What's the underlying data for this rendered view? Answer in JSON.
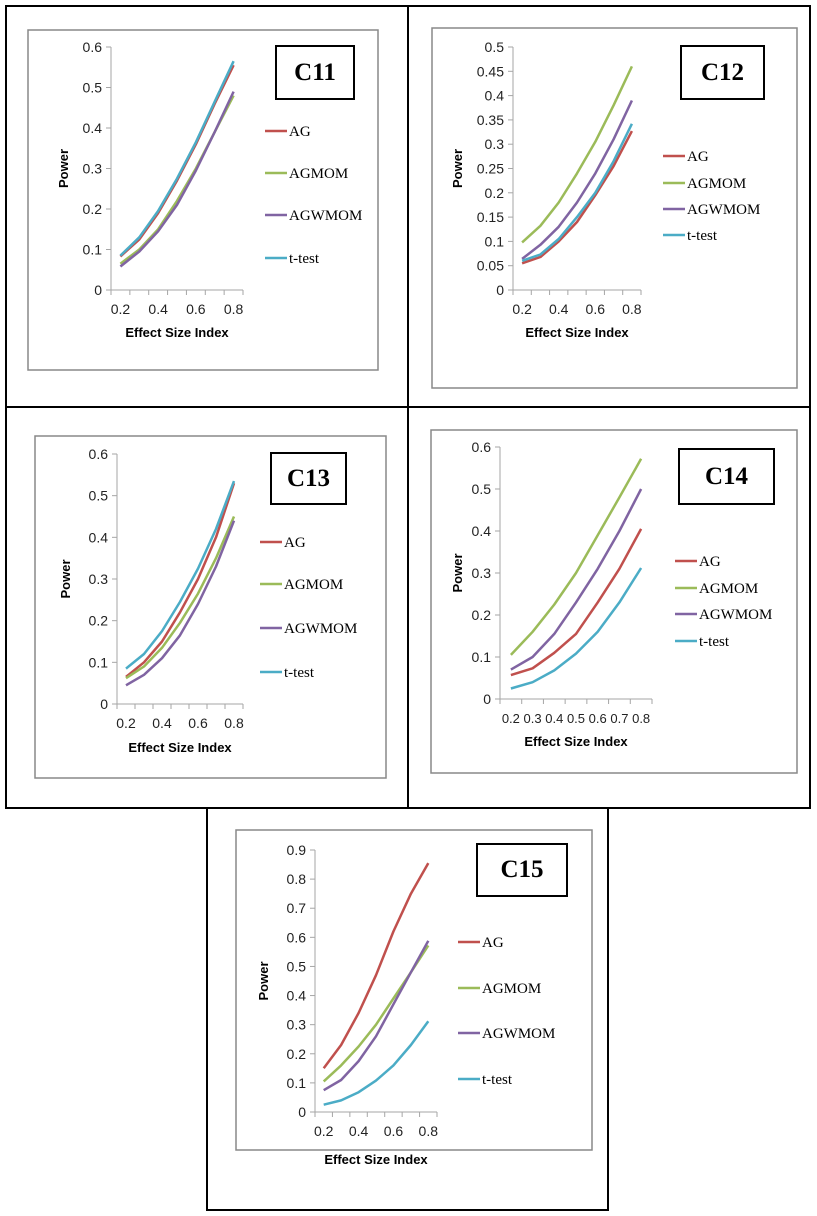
{
  "legend_labels": [
    "AG",
    "AGMOM",
    "AGWMOM",
    "t-test"
  ],
  "series_colors": [
    "#c0504d",
    "#9bbb59",
    "#8064a2",
    "#4bacc6"
  ],
  "chart_data": [
    {
      "type": "line",
      "title": "C11",
      "xlabel": "Effect Size Index",
      "ylabel": "Power",
      "categories": [
        "0.2",
        "0.3",
        "0.4",
        "0.5",
        "0.6",
        "0.7",
        "0.8"
      ],
      "x_tick_labels": [
        "0.2",
        "",
        "0.4",
        "",
        "0.6",
        "",
        "0.8"
      ],
      "ylim": [
        0,
        0.6
      ],
      "y_ticks": [
        0,
        0.1,
        0.2,
        0.3,
        0.4,
        0.5,
        0.6
      ],
      "y_tick_labels": [
        "0",
        "0.1",
        "0.2",
        "0.3",
        "0.4",
        "0.5",
        "0.6"
      ],
      "legend": "right",
      "series": [
        {
          "name": "AG",
          "values": [
            0.083,
            0.125,
            0.19,
            0.27,
            0.36,
            0.46,
            0.555
          ]
        },
        {
          "name": "AGMOM",
          "values": [
            0.065,
            0.1,
            0.15,
            0.22,
            0.3,
            0.39,
            0.48
          ]
        },
        {
          "name": "AGWMOM",
          "values": [
            0.058,
            0.095,
            0.145,
            0.21,
            0.295,
            0.39,
            0.49
          ]
        },
        {
          "name": "t-test",
          "values": [
            0.085,
            0.13,
            0.195,
            0.275,
            0.365,
            0.465,
            0.565
          ]
        }
      ]
    },
    {
      "type": "line",
      "title": "C12",
      "xlabel": "Effect Size Index",
      "ylabel": "Power",
      "categories": [
        "0.2",
        "0.3",
        "0.4",
        "0.5",
        "0.6",
        "0.7",
        "0.8"
      ],
      "x_tick_labels": [
        "0.2",
        "",
        "0.4",
        "",
        "0.6",
        "",
        "0.8"
      ],
      "ylim": [
        0,
        0.5
      ],
      "y_ticks": [
        0,
        0.05,
        0.1,
        0.15,
        0.2,
        0.25,
        0.3,
        0.35,
        0.4,
        0.45,
        0.5
      ],
      "y_tick_labels": [
        "0",
        "0.05",
        "0.1",
        "0.15",
        "0.2",
        "0.25",
        "0.3",
        "0.35",
        "0.4",
        "0.45",
        "0.5"
      ],
      "legend": "right",
      "series": [
        {
          "name": "AG",
          "values": [
            0.055,
            0.068,
            0.1,
            0.14,
            0.195,
            0.255,
            0.327
          ]
        },
        {
          "name": "AGMOM",
          "values": [
            0.098,
            0.132,
            0.18,
            0.24,
            0.305,
            0.38,
            0.46
          ]
        },
        {
          "name": "AGWMOM",
          "values": [
            0.064,
            0.093,
            0.13,
            0.18,
            0.24,
            0.31,
            0.39
          ]
        },
        {
          "name": "t-test",
          "values": [
            0.06,
            0.073,
            0.105,
            0.15,
            0.2,
            0.265,
            0.342
          ]
        }
      ]
    },
    {
      "type": "line",
      "title": "C13",
      "xlabel": "Effect Size Index",
      "ylabel": "Power",
      "categories": [
        "0.2",
        "0.3",
        "0.4",
        "0.5",
        "0.6",
        "0.7",
        "0.8"
      ],
      "x_tick_labels": [
        "0.2",
        "",
        "0.4",
        "",
        "0.6",
        "",
        "0.8"
      ],
      "ylim": [
        0,
        0.6
      ],
      "y_ticks": [
        0,
        0.1,
        0.2,
        0.3,
        0.4,
        0.5,
        0.6
      ],
      "y_tick_labels": [
        "0",
        "0.1",
        "0.2",
        "0.3",
        "0.4",
        "0.5",
        "0.6"
      ],
      "legend": "right",
      "series": [
        {
          "name": "AG",
          "values": [
            0.065,
            0.1,
            0.15,
            0.22,
            0.3,
            0.4,
            0.53
          ]
        },
        {
          "name": "AGMOM",
          "values": [
            0.062,
            0.09,
            0.135,
            0.195,
            0.265,
            0.35,
            0.45
          ]
        },
        {
          "name": "AGWMOM",
          "values": [
            0.045,
            0.07,
            0.11,
            0.165,
            0.24,
            0.33,
            0.44
          ]
        },
        {
          "name": "t-test",
          "values": [
            0.085,
            0.12,
            0.175,
            0.245,
            0.325,
            0.42,
            0.535
          ]
        }
      ]
    },
    {
      "type": "line",
      "title": "C14",
      "xlabel": "Effect Size Index",
      "ylabel": "Power",
      "categories": [
        "0.2",
        "0.3",
        "0.4",
        "0.5",
        "0.6",
        "0.7",
        "0.8"
      ],
      "x_tick_labels": [
        "0.2",
        "0.3",
        "0.4",
        "0.5",
        "0.6",
        "0.7",
        "0.8"
      ],
      "ylim": [
        0,
        0.6
      ],
      "y_ticks": [
        0,
        0.1,
        0.2,
        0.3,
        0.4,
        0.5,
        0.6
      ],
      "y_tick_labels": [
        "0",
        "0.1",
        "0.2",
        "0.3",
        "0.4",
        "0.5",
        "0.6"
      ],
      "legend": "right",
      "series": [
        {
          "name": "AG",
          "values": [
            0.057,
            0.073,
            0.11,
            0.155,
            0.23,
            0.31,
            0.405
          ]
        },
        {
          "name": "AGMOM",
          "values": [
            0.105,
            0.16,
            0.225,
            0.3,
            0.39,
            0.48,
            0.572
          ]
        },
        {
          "name": "AGWMOM",
          "values": [
            0.07,
            0.1,
            0.155,
            0.23,
            0.31,
            0.4,
            0.5
          ]
        },
        {
          "name": "t-test",
          "values": [
            0.025,
            0.04,
            0.068,
            0.108,
            0.16,
            0.23,
            0.312
          ]
        }
      ]
    },
    {
      "type": "line",
      "title": "C15",
      "xlabel": "Effect Size Index",
      "ylabel": "Power",
      "categories": [
        "0.2",
        "0.3",
        "0.4",
        "0.5",
        "0.6",
        "0.7",
        "0.8"
      ],
      "x_tick_labels": [
        "0.2",
        "",
        "0.4",
        "",
        "0.6",
        "",
        "0.8"
      ],
      "ylim": [
        0,
        0.9
      ],
      "y_ticks": [
        0,
        0.1,
        0.2,
        0.3,
        0.4,
        0.5,
        0.6,
        0.7,
        0.8,
        0.9
      ],
      "y_tick_labels": [
        "0",
        "0.1",
        "0.2",
        "0.3",
        "0.4",
        "0.5",
        "0.6",
        "0.7",
        "0.8",
        "0.9"
      ],
      "legend": "right",
      "series": [
        {
          "name": "AG",
          "values": [
            0.15,
            0.23,
            0.34,
            0.47,
            0.62,
            0.75,
            0.855
          ]
        },
        {
          "name": "AGMOM",
          "values": [
            0.105,
            0.16,
            0.225,
            0.3,
            0.39,
            0.48,
            0.572
          ]
        },
        {
          "name": "AGWMOM",
          "values": [
            0.075,
            0.11,
            0.175,
            0.26,
            0.37,
            0.48,
            0.588
          ]
        },
        {
          "name": "t-test",
          "values": [
            0.025,
            0.04,
            0.068,
            0.108,
            0.16,
            0.23,
            0.312
          ]
        }
      ]
    }
  ]
}
